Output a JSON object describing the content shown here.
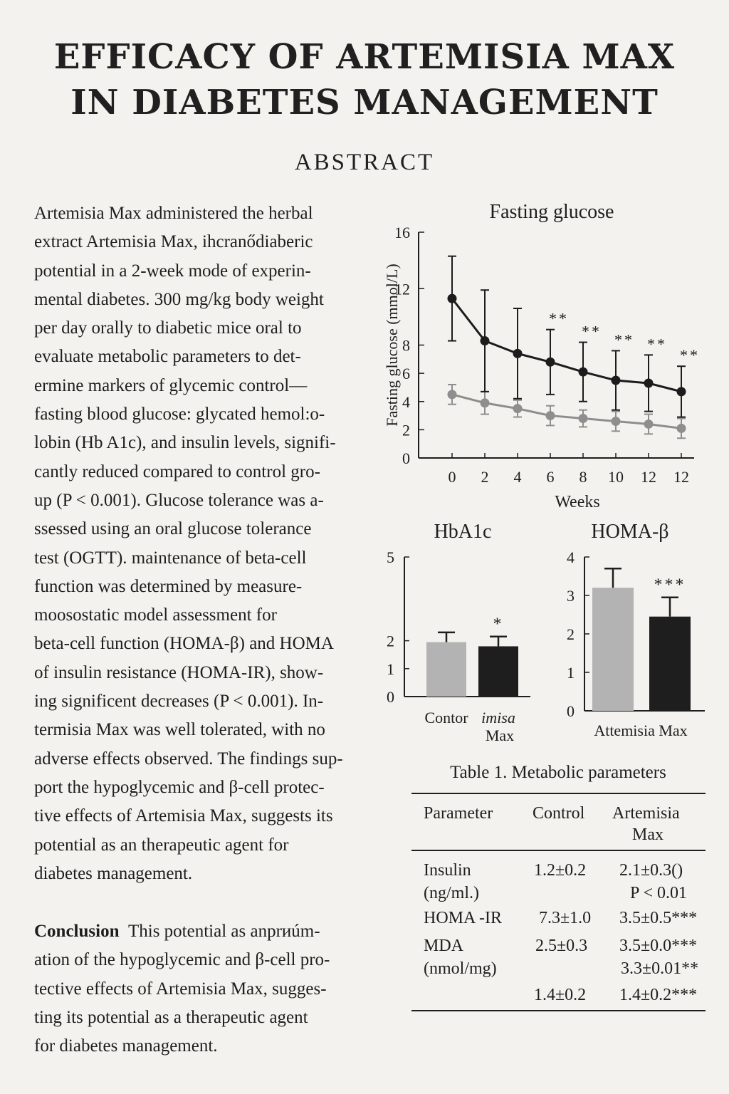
{
  "title_line1": "EFFICACY OF ARTEMISIA MAX",
  "title_line2": "IN DIABETES MANAGEMENT",
  "abstract_heading": "ABSTRACT",
  "abstract_lines": [
    "Artemisia Max administered the herbal",
    "extract Artemisia Max, ihcranődiaberic",
    "potential in a 2-week mode of experin-",
    "mental diabetes. 300 mg/kg body weight",
    "per day orally to diabetic mice oral to",
    "evaluate metabolic parameters to det-",
    "ermine markers of glycemic control—",
    "fasting blood glucose: glycated hemol:o-",
    "lobin (Hb A1c), and insulin levels, signifi-",
    "cantly reduced compared to control gro-",
    "up (P < 0.001). Glucose tolerance was a-",
    "ssessed using an oral glucose tolerance",
    "test (OGTT). maintenance of beta-cell",
    "function was determined by measure-",
    "moosostatic model assessment for",
    "beta-cell function (HOMA-β) and HOMA",
    "of insulin resistance (HOMA-IR), show-",
    "ing significent decreases (P < 0.001). In-",
    "termisia Max was well tolerated, with no",
    "adverse effects observed. The findings sup-",
    "port the hypoglycemic and β-cell protec-",
    "tive effects of Artemisia Max, suggests its",
    "potential as an therapeutic agent for",
    "diabetes management."
  ],
  "conclusion_label": "Conclusion",
  "conclusion_lines": [
    "This potential as anprиúm-",
    "ation of the hypoglycemic and β-cell pro-",
    "tective effects of Artemisia Max, sugges-",
    "ting its potential as a therapeutic agent",
    "for diabetes management."
  ],
  "chart_data": [
    {
      "type": "line",
      "title": "Fasting glucose",
      "xlabel": "Weeks",
      "ylabel": "Fasting glucose (mmol/L)",
      "x_tick_labels": [
        "0",
        "2",
        "4",
        "6",
        "8",
        "10",
        "12",
        "12"
      ],
      "ylim": [
        0,
        16
      ],
      "y_ticks": [
        0,
        2,
        4,
        6,
        8,
        12,
        16
      ],
      "series": [
        {
          "color": "#1c1c1c",
          "values": [
            11.3,
            8.3,
            7.4,
            6.8,
            6.1,
            5.5,
            5.3,
            4.7
          ],
          "errors": [
            3.0,
            3.6,
            3.2,
            2.3,
            2.1,
            2.1,
            2.0,
            1.8
          ],
          "significance": [
            "",
            "",
            "",
            "**",
            "**",
            "**",
            "**",
            "**"
          ]
        },
        {
          "color": "#8e8e8e",
          "values": [
            4.5,
            3.9,
            3.5,
            3.0,
            2.8,
            2.6,
            2.4,
            2.1
          ],
          "errors": [
            0.7,
            0.8,
            0.6,
            0.7,
            0.6,
            0.7,
            0.7,
            0.7
          ],
          "significance": [
            "",
            "",
            "",
            "",
            "",
            "",
            "",
            ""
          ]
        }
      ],
      "grid": false
    },
    {
      "type": "bar",
      "title": "HbA1c",
      "categories": [
        "Contor",
        "imisa Max"
      ],
      "values": [
        1.95,
        1.8
      ],
      "errors": [
        0.35,
        0.35
      ],
      "bar_colors": [
        "#b3b3b3",
        "#1e1e1e"
      ],
      "significance": [
        "",
        "*"
      ],
      "y_ticks": [
        0,
        1,
        2,
        5
      ],
      "grid": false
    },
    {
      "type": "bar",
      "title": "HOMA-β",
      "categories": [
        "",
        ""
      ],
      "x_axis_label": "Attemisia Max",
      "values": [
        3.2,
        2.45
      ],
      "errors": [
        0.5,
        0.5
      ],
      "bar_colors": [
        "#b3b3b3",
        "#1e1e1e"
      ],
      "significance": [
        "",
        "***"
      ],
      "ylim": [
        0,
        4
      ],
      "y_ticks": [
        0,
        1,
        2,
        3,
        4
      ],
      "grid": false
    }
  ],
  "table": {
    "caption": "Table 1. Metabolic parameters",
    "headers": [
      "Parameter",
      "Control",
      "Artemisia",
      "Max"
    ],
    "rows": [
      {
        "param": "Insulin",
        "param2": "(ng/ml.)",
        "control": "1.2±0.2",
        "artemisia": "2.1±0.3()",
        "artemisia2": "P < 0.01"
      },
      {
        "param": "HOMA -IR",
        "control": "7.3±1.0",
        "artemisia": "3.5±0.5***"
      },
      {
        "param": "MDA",
        "param2": "(nmol/mg)",
        "control": "2.5±0.3",
        "artemisia": "3.5±0.0***",
        "artemisia2": "3.3±0.01**"
      },
      {
        "param": "",
        "control": "1.4±0.2",
        "artemisia": "1.4±0.2***"
      }
    ]
  }
}
